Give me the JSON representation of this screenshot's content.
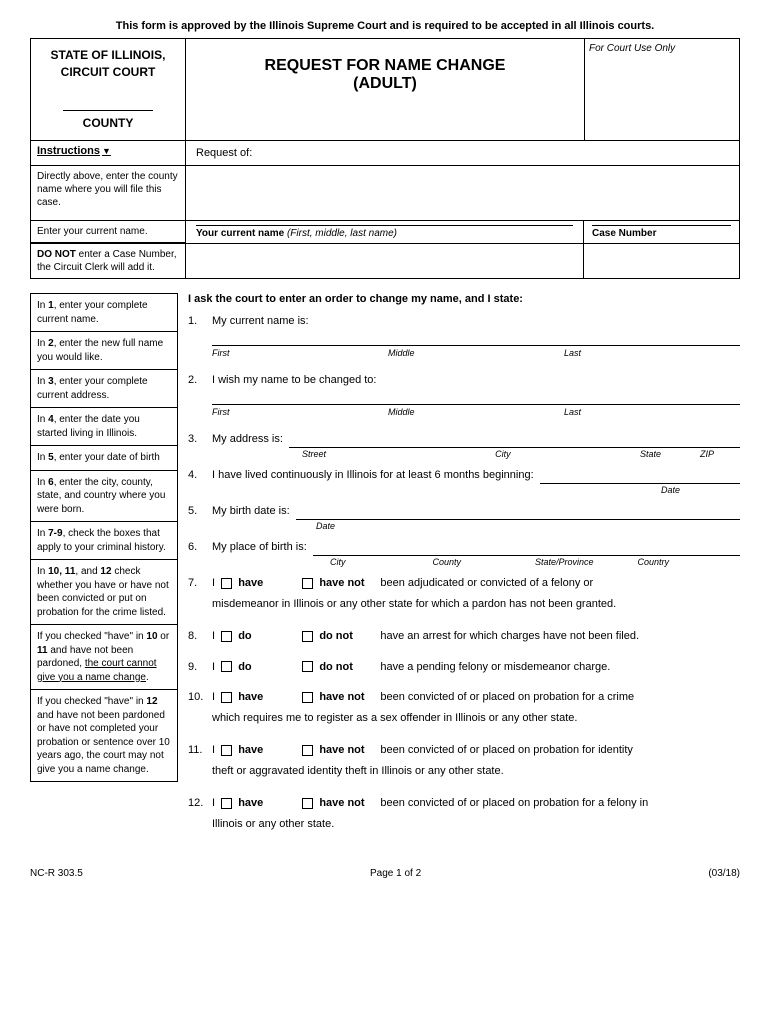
{
  "approval": "This form is approved by the Illinois Supreme Court and is required to be accepted in all Illinois courts.",
  "header": {
    "state": "STATE OF ILLINOIS,",
    "court": "CIRCUIT COURT",
    "county": "COUNTY",
    "title1": "REQUEST FOR NAME CHANGE",
    "title2": "(ADULT)",
    "court_use": "For Court Use Only",
    "instructions": "Instructions",
    "request_of": "Request of:",
    "name_label_bold": "Your current name",
    "name_label_italic": "(First, middle, last name)",
    "case_number": "Case Number"
  },
  "inst": {
    "county": "Directly above, enter the county name where you will file this case.",
    "name": "Enter your current name.",
    "case_pre": "DO NOT",
    "case": " enter a Case Number, the Circuit Clerk will add it."
  },
  "sidebar": [
    {
      "html": "In <b>1</b>, enter your complete current name."
    },
    {
      "html": "In <b>2</b>, enter the new full name you would like."
    },
    {
      "html": "In <b>3</b>, enter your complete current address."
    },
    {
      "html": "In <b>4</b>, enter the date you started living in Illinois."
    },
    {
      "html": "In <b>5</b>, enter your date of birth"
    },
    {
      "html": "In <b>6</b>, enter the city, county, state, and country where you were born."
    },
    {
      "html": "In <b>7-9</b>, check the boxes that apply to your criminal history."
    },
    {
      "html": "In <b>10, 11</b>, and <b>12</b> check whether you have or have not been convicted or put on probation for the crime listed."
    },
    {
      "html": "If you checked \"have\" in <b>10</b> or <b>11</b> and have not been pardoned, <u>the court cannot give you a name change</u>."
    },
    {
      "html": "If you checked \"have\" in <b>12</b> and have not been pardoned or have not completed your probation or sentence over 10 years ago, the court may not give you a name change."
    }
  ],
  "intro": "I ask the court to enter an order to change my name, and I state:",
  "items": {
    "1": "My current name is:",
    "2": "I wish my name to be changed to:",
    "3": "My address is:",
    "4": "I have lived continuously in Illinois for at least 6 months beginning:",
    "5": "My birth date is:",
    "6": "My place of birth is:",
    "7a": "been adjudicated or convicted of a felony or",
    "7b": "misdemeanor in Illinois or any other state for which a pardon has not been granted.",
    "8": "have an arrest for which charges have not been filed.",
    "9": "have a pending felony or misdemeanor charge.",
    "10a": "been convicted of or placed on probation for a crime",
    "10b": "which requires me to register as a sex offender in Illinois or any other state.",
    "11a": "been convicted of or placed on probation for identity",
    "11b": "theft or aggravated identity theft in Illinois or any other state.",
    "12a": "been convicted of or placed on probation for a felony in",
    "12b": "Illinois or any other state."
  },
  "labels": {
    "first": "First",
    "middle": "Middle",
    "last": "Last",
    "street": "Street",
    "city": "City",
    "state": "State",
    "zip": "ZIP",
    "date": "Date",
    "county": "County",
    "state_prov": "State/Province",
    "country": "Country",
    "i": "I",
    "have": "have",
    "have_not": "have not",
    "do": "do",
    "do_not": "do not"
  },
  "footer": {
    "form": "NC-R 303.5",
    "page": "Page 1 of 2",
    "date": "(03/18)"
  }
}
